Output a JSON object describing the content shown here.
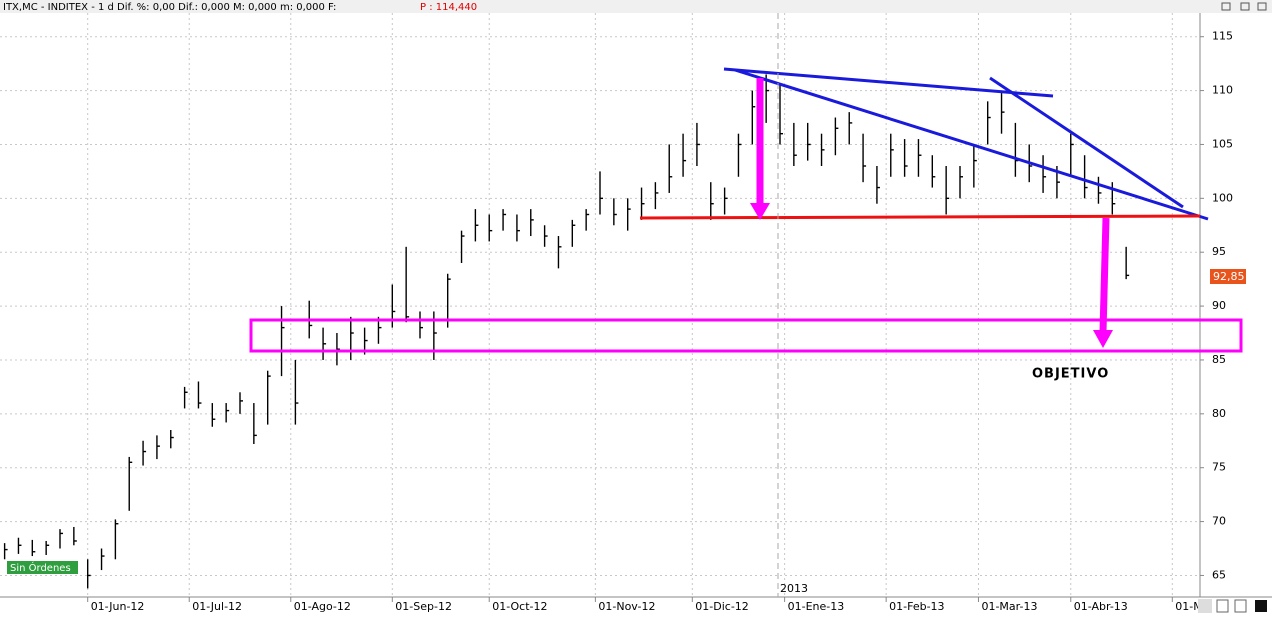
{
  "chart_data": {
    "type": "ohlc",
    "title": "ITX,MC - INDITEX - 1 d Dif. %: 0,00 Dif.: 0,000 M: 0,000 m: 0,000 F:",
    "header_price": "P : 114,440",
    "year_label": "2013",
    "status_label": "Sin Órdenes",
    "last_price_label": "92,85",
    "annotation": "OBJETIVO",
    "color": "#000000",
    "grid": true,
    "xlim": [
      -1,
      259
    ],
    "ylim": [
      63,
      117.2
    ],
    "xticks": [
      {
        "value": 18,
        "label": "01-Jun-12"
      },
      {
        "value": 40,
        "label": "01-Jul-12"
      },
      {
        "value": 62,
        "label": "01-Ago-12"
      },
      {
        "value": 84,
        "label": "01-Sep-12"
      },
      {
        "value": 105,
        "label": "01-Oct-12"
      },
      {
        "value": 128,
        "label": "01-Nov-12"
      },
      {
        "value": 149,
        "label": "01-Dic-12"
      },
      {
        "value": 169,
        "label": "01-Ene-13"
      },
      {
        "value": 191,
        "label": "01-Feb-13"
      },
      {
        "value": 211,
        "label": "01-Mar-13"
      },
      {
        "value": 231,
        "label": "01-Abr-13"
      },
      {
        "value": 253,
        "label": "01-M"
      }
    ],
    "yticks": [
      65,
      70,
      75,
      80,
      85,
      90,
      95,
      100,
      105,
      110,
      115
    ],
    "x": [
      0,
      3,
      6,
      9,
      12,
      15,
      18,
      21,
      24,
      27,
      30,
      33,
      36,
      39,
      42,
      45,
      48,
      51,
      54,
      57,
      60,
      63,
      66,
      69,
      72,
      75,
      78,
      81,
      84,
      87,
      90,
      93,
      96,
      99,
      102,
      105,
      108,
      111,
      114,
      117,
      120,
      123,
      126,
      129,
      132,
      135,
      138,
      141,
      144,
      147,
      150,
      153,
      156,
      159,
      162,
      165,
      168,
      171,
      174,
      177,
      180,
      183,
      186,
      189,
      192,
      195,
      198,
      201,
      204,
      207,
      210,
      213,
      216,
      219,
      222,
      225,
      228,
      231,
      234,
      237,
      240,
      243
    ],
    "high": [
      68,
      68.5,
      68.3,
      68.2,
      69.3,
      69.5,
      66.5,
      67.5,
      70.2,
      76,
      77.5,
      78,
      78.5,
      82.5,
      83,
      81,
      81,
      82,
      81,
      84,
      90,
      85,
      90.5,
      88,
      87.5,
      89,
      88,
      89,
      92,
      95.5,
      89.5,
      89.5,
      93,
      97,
      99,
      98.5,
      99,
      98.5,
      99,
      97.5,
      96.5,
      98,
      99,
      102.5,
      100,
      100,
      101,
      101.5,
      105,
      106,
      107,
      101.5,
      101,
      106,
      110,
      111.5,
      110.5,
      107,
      107,
      106,
      107.5,
      108,
      106,
      103,
      106,
      105.5,
      105.5,
      104,
      103,
      103,
      105,
      109,
      110,
      107,
      105,
      104,
      103,
      106,
      104,
      102,
      101.5,
      95.5
    ],
    "low": [
      66.5,
      67,
      66.8,
      66.9,
      67.5,
      67.8,
      63.8,
      65.5,
      66.5,
      71,
      75.2,
      75.8,
      76.8,
      80.5,
      80.5,
      78.8,
      79.2,
      80,
      77.2,
      79,
      83.5,
      79,
      87,
      85,
      84.5,
      85,
      85.5,
      86.5,
      88,
      88.5,
      87,
      85,
      88,
      94,
      96,
      96,
      97,
      96,
      96.5,
      95.5,
      93.5,
      95.5,
      97,
      98.5,
      97.5,
      97,
      98,
      99,
      100.5,
      102,
      103,
      98,
      98.5,
      102,
      105,
      107,
      105,
      103,
      103.5,
      103,
      104,
      105,
      101.5,
      99.5,
      102,
      102,
      102,
      101,
      98.5,
      100,
      101,
      105,
      106,
      102,
      101.5,
      100.5,
      100,
      102,
      100,
      99.5,
      98.5,
      92.5
    ],
    "close": [
      67.4,
      67.8,
      67.2,
      67.8,
      68.9,
      68.2,
      65,
      66.8,
      69.8,
      75.5,
      76.5,
      77,
      77.8,
      82,
      81,
      79.5,
      80.3,
      81.2,
      78,
      83.5,
      88,
      81,
      88.2,
      86.5,
      86,
      87.5,
      86.8,
      88,
      89.5,
      89,
      88,
      87.5,
      92.5,
      96.5,
      97.5,
      97,
      98.5,
      97,
      98,
      96.5,
      95.5,
      97.5,
      98.5,
      100,
      98.5,
      99,
      99.5,
      100.5,
      102,
      103.5,
      105,
      99.5,
      100,
      105,
      108.5,
      110,
      106,
      104,
      105,
      104.5,
      106.5,
      107,
      103,
      101,
      104.5,
      103,
      104,
      102,
      100,
      102,
      103.5,
      107.5,
      108,
      103.5,
      103,
      102,
      101.5,
      105,
      101,
      100.5,
      99.5,
      92.85
    ]
  }
}
